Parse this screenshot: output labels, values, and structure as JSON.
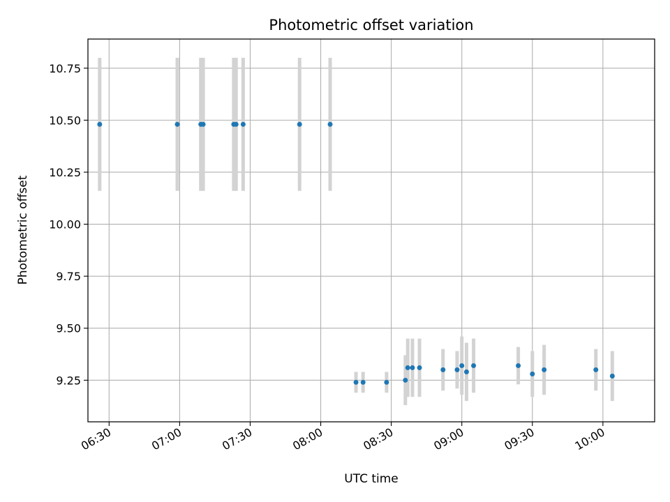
{
  "chart_data": {
    "type": "scatter",
    "title": "Photometric offset variation",
    "xlabel": "UTC time",
    "ylabel": "Photometric offset",
    "x_unit": "time of day (HH:MM, UTC)",
    "xlim": [
      "06:21",
      "10:22"
    ],
    "ylim": [
      9.05,
      10.89
    ],
    "grid": true,
    "xticks": [
      "06:30",
      "07:00",
      "07:30",
      "08:00",
      "08:30",
      "09:00",
      "09:30",
      "10:00"
    ],
    "yticks": [
      "10.75",
      "10.50",
      "10.25",
      "10.00",
      "9.75",
      "9.50",
      "9.25"
    ],
    "colors": {
      "point": "#1f77b4",
      "errorbar": "#d3d3d3",
      "grid": "#b0b0b0",
      "axes": "#000000"
    },
    "series": [
      {
        "points": [
          {
            "x": "06:26",
            "y": 10.48,
            "err": 0.32
          },
          {
            "x": "06:59",
            "y": 10.48,
            "err": 0.32
          },
          {
            "x": "07:09",
            "y": 10.48,
            "err": 0.32
          },
          {
            "x": "07:10",
            "y": 10.48,
            "err": 0.32
          },
          {
            "x": "07:23",
            "y": 10.48,
            "err": 0.32
          },
          {
            "x": "07:24",
            "y": 10.48,
            "err": 0.32
          },
          {
            "x": "07:27",
            "y": 10.48,
            "err": 0.32
          },
          {
            "x": "07:51",
            "y": 10.48,
            "err": 0.32
          },
          {
            "x": "08:04",
            "y": 10.48,
            "err": 0.32
          },
          {
            "x": "08:15",
            "y": 9.24,
            "err": 0.05
          },
          {
            "x": "08:18",
            "y": 9.24,
            "err": 0.05
          },
          {
            "x": "08:28",
            "y": 9.24,
            "err": 0.05
          },
          {
            "x": "08:36",
            "y": 9.25,
            "err": 0.12
          },
          {
            "x": "08:37",
            "y": 9.31,
            "err": 0.14
          },
          {
            "x": "08:39",
            "y": 9.31,
            "err": 0.14
          },
          {
            "x": "08:42",
            "y": 9.31,
            "err": 0.14
          },
          {
            "x": "08:52",
            "y": 9.3,
            "err": 0.1
          },
          {
            "x": "08:58",
            "y": 9.3,
            "err": 0.09
          },
          {
            "x": "09:00",
            "y": 9.32,
            "err": 0.14
          },
          {
            "x": "09:02",
            "y": 9.29,
            "err": 0.14
          },
          {
            "x": "09:05",
            "y": 9.32,
            "err": 0.13
          },
          {
            "x": "09:24",
            "y": 9.32,
            "err": 0.09
          },
          {
            "x": "09:30",
            "y": 9.28,
            "err": 0.11
          },
          {
            "x": "09:35",
            "y": 9.3,
            "err": 0.12
          },
          {
            "x": "09:57",
            "y": 9.3,
            "err": 0.1
          },
          {
            "x": "10:04",
            "y": 9.27,
            "err": 0.12
          }
        ]
      }
    ]
  }
}
